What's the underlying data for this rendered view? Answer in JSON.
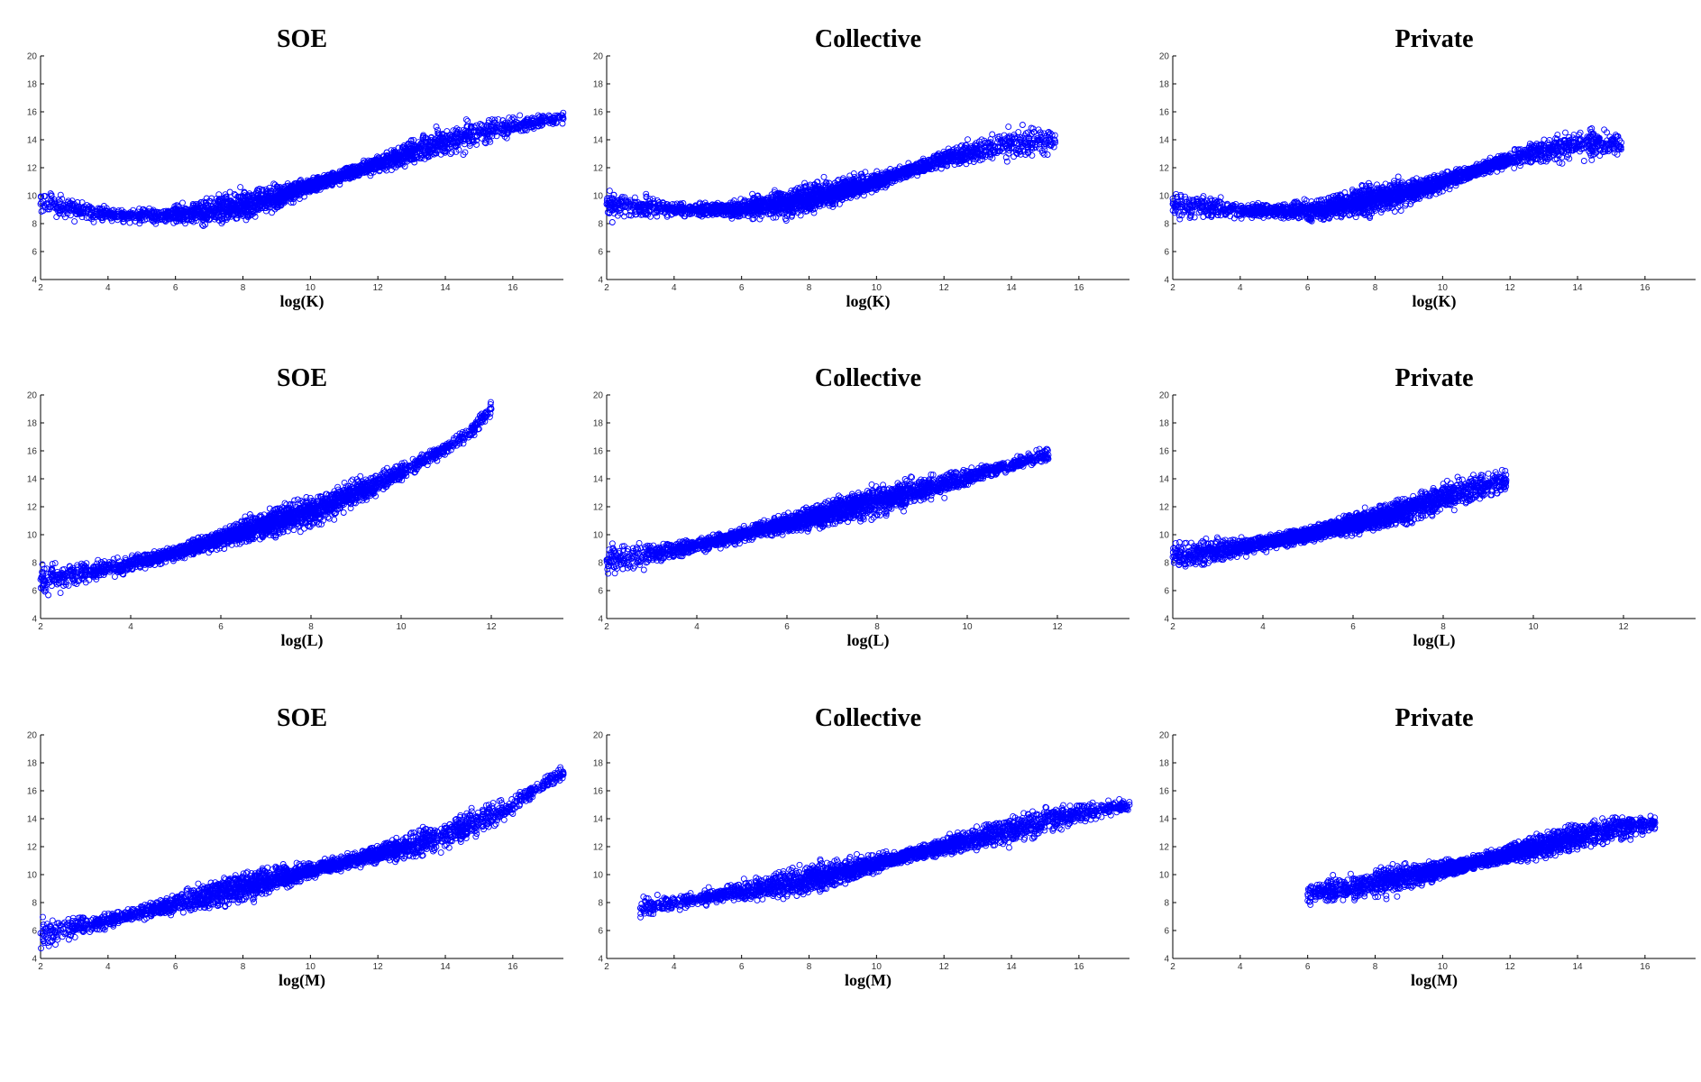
{
  "chart_data": [
    {
      "type": "scatter",
      "title": "SOE",
      "xlabel": "log(K)",
      "xlim": [
        2,
        17.5
      ],
      "ylim": [
        4,
        20
      ],
      "xticks": [
        2,
        4,
        6,
        8,
        10,
        12,
        14,
        16
      ],
      "yticks": [
        4,
        6,
        8,
        10,
        12,
        14,
        16,
        18,
        20
      ],
      "color": "#0000ff",
      "x": [
        2,
        2.5,
        3,
        3.5,
        4,
        4.5,
        5,
        5.5,
        6,
        6.5,
        7,
        7.5,
        8,
        8.5,
        9,
        9.5,
        10,
        10.5,
        11,
        11.5,
        12,
        12.5,
        13,
        13.5,
        14,
        14.5,
        15,
        15.5,
        16,
        16.5,
        17,
        17.5
      ],
      "y": [
        9.4,
        9.2,
        9.0,
        8.8,
        8.7,
        8.6,
        8.6,
        8.6,
        8.7,
        8.8,
        8.9,
        9.1,
        9.3,
        9.6,
        9.9,
        10.3,
        10.7,
        11.1,
        11.5,
        11.9,
        12.3,
        12.7,
        13.1,
        13.5,
        13.9,
        14.2,
        14.5,
        14.8,
        15.0,
        15.2,
        15.4,
        15.5
      ]
    },
    {
      "type": "scatter",
      "title": "Collective",
      "xlabel": "log(K)",
      "xlim": [
        2,
        17.5
      ],
      "ylim": [
        4,
        20
      ],
      "xticks": [
        2,
        4,
        6,
        8,
        10,
        12,
        14,
        16
      ],
      "yticks": [
        4,
        6,
        8,
        10,
        12,
        14,
        16,
        18,
        20
      ],
      "color": "#0000ff",
      "x": [
        2,
        2.5,
        3,
        3.5,
        4,
        4.5,
        5,
        5.5,
        6,
        6.5,
        7,
        7.5,
        8,
        8.5,
        9,
        9.5,
        10,
        10.5,
        11,
        11.5,
        12,
        12.5,
        13,
        13.5,
        14,
        14.5,
        15,
        15.3
      ],
      "y": [
        9.4,
        9.3,
        9.2,
        9.1,
        9.0,
        9.0,
        9.0,
        9.0,
        9.1,
        9.2,
        9.4,
        9.6,
        9.8,
        10.1,
        10.4,
        10.7,
        11.0,
        11.4,
        11.8,
        12.2,
        12.6,
        12.9,
        13.2,
        13.5,
        13.7,
        13.8,
        13.8,
        13.8
      ]
    },
    {
      "type": "scatter",
      "title": "Private",
      "xlabel": "log(K)",
      "xlim": [
        2,
        17.5
      ],
      "ylim": [
        4,
        20
      ],
      "xticks": [
        2,
        4,
        6,
        8,
        10,
        12,
        14,
        16
      ],
      "yticks": [
        4,
        6,
        8,
        10,
        12,
        14,
        16,
        18,
        20
      ],
      "color": "#0000ff",
      "x": [
        2,
        2.5,
        3,
        3.5,
        4,
        4.5,
        5,
        5.5,
        6,
        6.5,
        7,
        7.5,
        8,
        8.5,
        9,
        9.5,
        10,
        10.5,
        11,
        11.5,
        12,
        12.5,
        13,
        13.5,
        14,
        14.5,
        15,
        15.3
      ],
      "y": [
        9.4,
        9.2,
        9.1,
        9.0,
        8.9,
        8.9,
        8.9,
        8.9,
        9.0,
        9.1,
        9.3,
        9.5,
        9.7,
        10.0,
        10.3,
        10.6,
        11.0,
        11.4,
        11.8,
        12.2,
        12.6,
        12.9,
        13.2,
        13.5,
        13.7,
        13.8,
        13.8,
        13.8
      ]
    },
    {
      "type": "scatter",
      "title": "SOE",
      "xlabel": "log(L)",
      "xlim": [
        2,
        13.6
      ],
      "ylim": [
        4,
        20
      ],
      "xticks": [
        2,
        4,
        6,
        8,
        10,
        12
      ],
      "yticks": [
        4,
        6,
        8,
        10,
        12,
        14,
        16,
        18,
        20
      ],
      "color": "#0000ff",
      "x": [
        2,
        2.5,
        3,
        3.5,
        4,
        4.5,
        5,
        5.5,
        6,
        6.5,
        7,
        7.5,
        8,
        8.5,
        9,
        9.5,
        10,
        10.5,
        11,
        11.5,
        12
      ],
      "y": [
        6.8,
        7.0,
        7.3,
        7.6,
        7.9,
        8.3,
        8.7,
        9.2,
        9.7,
        10.2,
        10.7,
        11.2,
        11.7,
        12.3,
        13.0,
        13.7,
        14.5,
        15.3,
        16.2,
        17.2,
        19.0
      ]
    },
    {
      "type": "scatter",
      "title": "Collective",
      "xlabel": "log(L)",
      "xlim": [
        2,
        13.6
      ],
      "ylim": [
        4,
        20
      ],
      "xticks": [
        2,
        4,
        6,
        8,
        10,
        12
      ],
      "yticks": [
        4,
        6,
        8,
        10,
        12,
        14,
        16,
        18,
        20
      ],
      "color": "#0000ff",
      "x": [
        2,
        2.5,
        3,
        3.5,
        4,
        4.5,
        5,
        5.5,
        6,
        6.5,
        7,
        7.5,
        8,
        8.5,
        9,
        9.5,
        10,
        10.5,
        11,
        11.5,
        11.8
      ],
      "y": [
        8.2,
        8.4,
        8.6,
        8.9,
        9.2,
        9.6,
        10.0,
        10.4,
        10.8,
        11.2,
        11.6,
        12.0,
        12.4,
        12.8,
        13.2,
        13.6,
        14.1,
        14.6,
        15.0,
        15.5,
        15.7
      ]
    },
    {
      "type": "scatter",
      "title": "Private",
      "xlabel": "log(L)",
      "xlim": [
        2,
        13.6
      ],
      "ylim": [
        4,
        20
      ],
      "xticks": [
        2,
        4,
        6,
        8,
        10,
        12
      ],
      "yticks": [
        4,
        6,
        8,
        10,
        12,
        14,
        16,
        18,
        20
      ],
      "color": "#0000ff",
      "x": [
        2,
        2.5,
        3,
        3.5,
        4,
        4.5,
        5,
        5.5,
        6,
        6.5,
        7,
        7.5,
        8,
        8.5,
        9,
        9.4
      ],
      "y": [
        8.4,
        8.6,
        8.9,
        9.1,
        9.4,
        9.7,
        10.0,
        10.4,
        10.8,
        11.2,
        11.6,
        12.1,
        12.6,
        13.1,
        13.6,
        13.9
      ]
    },
    {
      "type": "scatter",
      "title": "SOE",
      "xlabel": "log(M)",
      "xlim": [
        2,
        17.5
      ],
      "ylim": [
        4,
        20
      ],
      "xticks": [
        2,
        4,
        6,
        8,
        10,
        12,
        14,
        16
      ],
      "yticks": [
        4,
        6,
        8,
        10,
        12,
        14,
        16,
        18,
        20
      ],
      "color": "#0000ff",
      "x": [
        2,
        2.5,
        3,
        3.5,
        4,
        4.5,
        5,
        5.5,
        6,
        6.5,
        7,
        7.5,
        8,
        8.5,
        9,
        9.5,
        10,
        10.5,
        11,
        11.5,
        12,
        12.5,
        13,
        13.5,
        14,
        14.5,
        15,
        15.5,
        16,
        16.5,
        17,
        17.5
      ],
      "y": [
        5.8,
        6.0,
        6.2,
        6.4,
        6.7,
        7.0,
        7.3,
        7.6,
        7.9,
        8.2,
        8.5,
        8.8,
        9.1,
        9.4,
        9.7,
        10.0,
        10.3,
        10.6,
        10.9,
        11.2,
        11.5,
        11.8,
        12.1,
        12.5,
        12.9,
        13.4,
        13.9,
        14.4,
        15.0,
        15.8,
        16.6,
        17.3
      ]
    },
    {
      "type": "scatter",
      "title": "Collective",
      "xlabel": "log(M)",
      "xlim": [
        2,
        17.5
      ],
      "ylim": [
        4,
        20
      ],
      "xticks": [
        2,
        4,
        6,
        8,
        10,
        12,
        14,
        16
      ],
      "yticks": [
        4,
        6,
        8,
        10,
        12,
        14,
        16,
        18,
        20
      ],
      "color": "#0000ff",
      "x": [
        3,
        3.5,
        4,
        4.5,
        5,
        5.5,
        6,
        6.5,
        7,
        7.5,
        8,
        8.5,
        9,
        9.5,
        10,
        10.5,
        11,
        11.5,
        12,
        12.5,
        13,
        13.5,
        14,
        14.5,
        15,
        15.5,
        16,
        16.5,
        17,
        17.5
      ],
      "y": [
        7.6,
        7.8,
        8.0,
        8.2,
        8.4,
        8.6,
        8.8,
        9.0,
        9.2,
        9.4,
        9.7,
        9.9,
        10.2,
        10.5,
        10.8,
        11.1,
        11.4,
        11.7,
        12.0,
        12.3,
        12.6,
        12.9,
        13.2,
        13.5,
        13.8,
        14.1,
        14.4,
        14.6,
        14.8,
        15.0
      ]
    },
    {
      "type": "scatter",
      "title": "Private",
      "xlabel": "log(M)",
      "xlim": [
        2,
        17.5
      ],
      "ylim": [
        4,
        20
      ],
      "xticks": [
        2,
        4,
        6,
        8,
        10,
        12,
        14,
        16
      ],
      "yticks": [
        4,
        6,
        8,
        10,
        12,
        14,
        16,
        18,
        20
      ],
      "color": "#0000ff",
      "x": [
        6,
        6.5,
        7,
        7.5,
        8,
        8.5,
        9,
        9.5,
        10,
        10.5,
        11,
        11.5,
        12,
        12.5,
        13,
        13.5,
        14,
        14.5,
        15,
        15.5,
        16,
        16.3
      ],
      "y": [
        8.6,
        8.8,
        9.0,
        9.2,
        9.4,
        9.6,
        9.9,
        10.1,
        10.4,
        10.6,
        10.9,
        11.2,
        11.5,
        11.8,
        12.1,
        12.4,
        12.7,
        13.0,
        13.2,
        13.4,
        13.6,
        13.7
      ]
    }
  ]
}
